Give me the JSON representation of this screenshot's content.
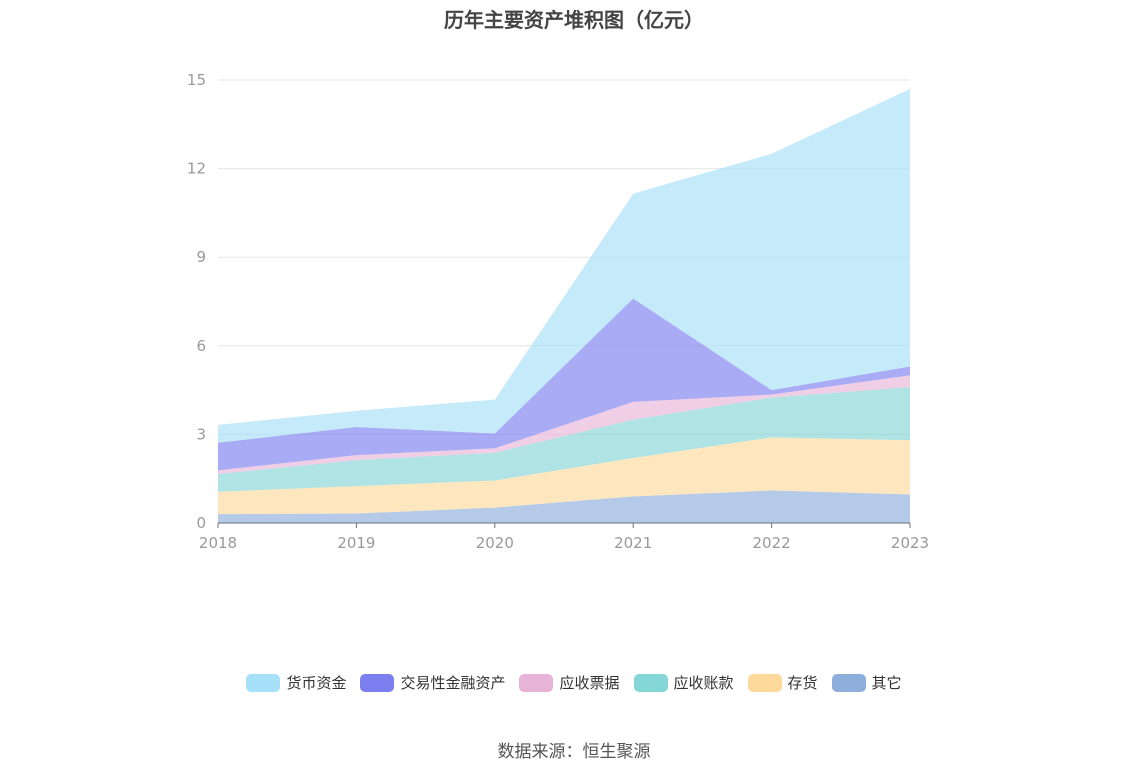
{
  "chart_data": {
    "type": "area",
    "stacked": true,
    "title": "历年主要资产堆积图（亿元）",
    "x": [
      "2018",
      "2019",
      "2020",
      "2021",
      "2022",
      "2023"
    ],
    "ylim": [
      0,
      15
    ],
    "yticks": [
      0,
      3,
      6,
      9,
      12,
      15
    ],
    "grid": true,
    "legend_position": "bottom",
    "series": [
      {
        "name": "其它",
        "color": "#8eaedc",
        "values": [
          0.3,
          0.32,
          0.52,
          0.9,
          1.1,
          0.97
        ]
      },
      {
        "name": "存货",
        "color": "#fdd99b",
        "values": [
          0.76,
          0.93,
          0.92,
          1.3,
          1.8,
          1.83
        ]
      },
      {
        "name": "应收账款",
        "color": "#85d6d6",
        "values": [
          0.6,
          0.88,
          0.94,
          1.3,
          1.35,
          1.8
        ]
      },
      {
        "name": "应收票据",
        "color": "#e7b4d8",
        "values": [
          0.12,
          0.17,
          0.15,
          0.6,
          0.1,
          0.4
        ]
      },
      {
        "name": "交易性金融资产",
        "color": "#7b7ff0",
        "values": [
          0.94,
          0.95,
          0.5,
          3.5,
          0.15,
          0.3
        ]
      },
      {
        "name": "货币资金",
        "color": "#a6e0f9",
        "values": [
          0.6,
          0.55,
          1.15,
          3.55,
          8.0,
          9.4
        ]
      }
    ],
    "legend_order": [
      "货币资金",
      "交易性金融资产",
      "应收票据",
      "应收账款",
      "存货",
      "其它"
    ]
  },
  "source_text": "数据来源：恒生聚源"
}
